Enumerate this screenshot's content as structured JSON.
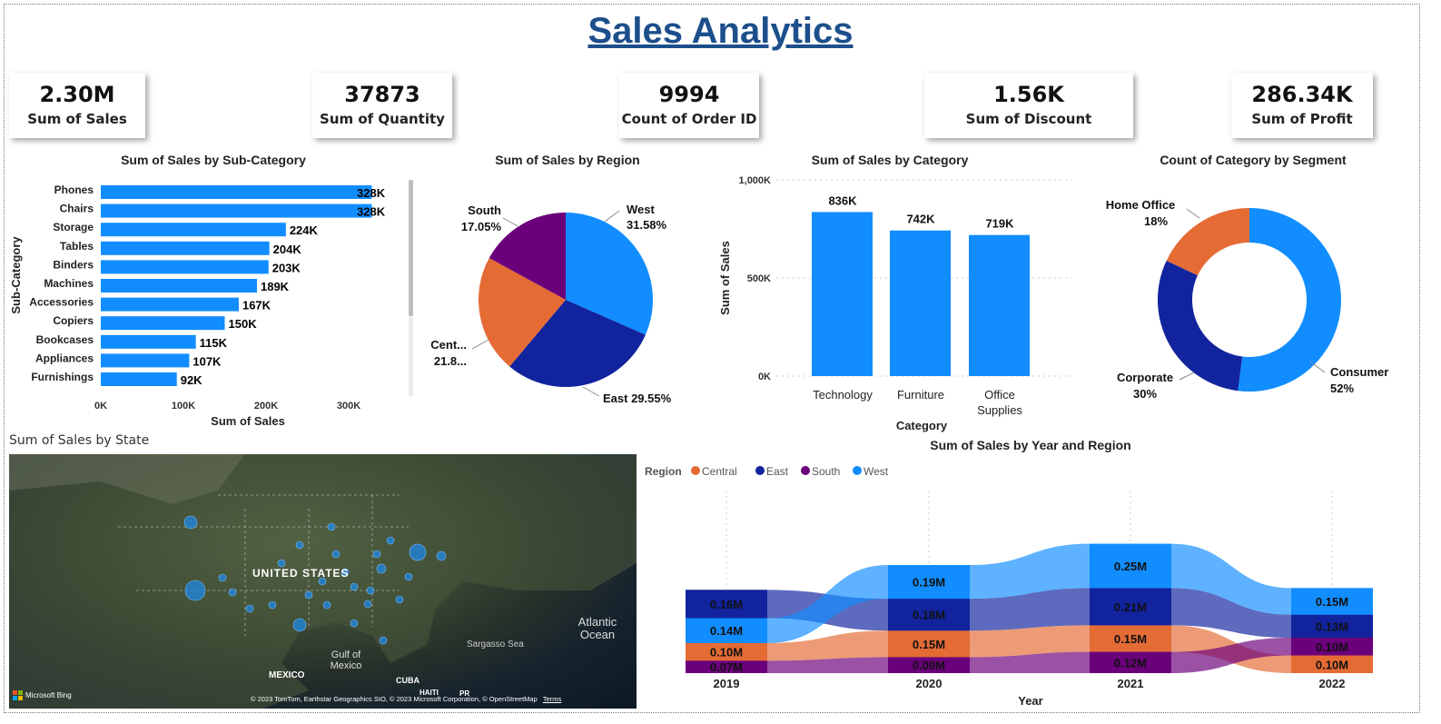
{
  "title": "Sales Analytics",
  "kpis": [
    {
      "value": "2.30M",
      "label": "Sum of Sales"
    },
    {
      "value": "37873",
      "label": "Sum of Quantity"
    },
    {
      "value": "9994",
      "label": "Count of Order ID"
    },
    {
      "value": "1.56K",
      "label": "Sum of Discount"
    },
    {
      "value": "286.34K",
      "label": "Sum of Profit"
    }
  ],
  "map": {
    "title": "Sum of Sales by State",
    "labels": {
      "us": "UNITED STATES",
      "mexico": "MEXICO",
      "gulf": "Gulf of Mexico",
      "cuba": "CUBA",
      "atlantic": "Atlantic Ocean",
      "sargasso": "Sargasso Sea",
      "haiti": "HAITI",
      "pr": "PR"
    },
    "bing": "Microsoft Bing",
    "attribution": "© 2023 TomTom, Earthstar Geographics SIO, © 2023 Microsoft Corporation, © OpenStreetMap",
    "terms": "Terms",
    "bubble_color": "#1e88e5"
  },
  "colors": {
    "central": "#e56b35",
    "east": "#12239e",
    "south": "#6b007b",
    "west": "#118dff"
  },
  "chart_data": [
    {
      "type": "bar",
      "orientation": "horizontal",
      "title": "Sum of Sales by Sub-Category",
      "xlabel": "Sum of Sales",
      "ylabel": "Sub-Category",
      "categories": [
        "Phones",
        "Chairs",
        "Storage",
        "Tables",
        "Binders",
        "Machines",
        "Accessories",
        "Copiers",
        "Bookcases",
        "Appliances",
        "Furnishings"
      ],
      "values": [
        328000,
        328000,
        224000,
        204000,
        203000,
        189000,
        167000,
        150000,
        115000,
        107000,
        92000
      ],
      "data_labels": [
        "328K",
        "328K",
        "224K",
        "204K",
        "203K",
        "189K",
        "167K",
        "150K",
        "115K",
        "107K",
        "92K"
      ],
      "xticks": [
        "0K",
        "100K",
        "200K",
        "300K"
      ],
      "xlim": [
        0,
        350000
      ]
    },
    {
      "type": "pie",
      "title": "Sum of Sales by Region",
      "slices": [
        {
          "label": "West",
          "percent_label": "31.58%",
          "value": 31.58
        },
        {
          "label": "East",
          "percent_label": "29.55%",
          "value": 29.55
        },
        {
          "label": "Cent...",
          "percent_label": "21.8...",
          "value": 21.82
        },
        {
          "label": "South",
          "percent_label": "17.05%",
          "value": 17.05
        }
      ]
    },
    {
      "type": "bar",
      "title": "Sum of Sales by Category",
      "xlabel": "Category",
      "ylabel": "Sum of Sales",
      "categories": [
        "Technology",
        "Furniture",
        "Office Supplies"
      ],
      "values": [
        836000,
        742000,
        719000
      ],
      "data_labels": [
        "836K",
        "742K",
        "719K"
      ],
      "yticks": [
        "0K",
        "500K",
        "1,000K"
      ],
      "ylim": [
        0,
        1000000
      ]
    },
    {
      "type": "pie",
      "donut": true,
      "title": "Count of Category by Segment",
      "slices": [
        {
          "label": "Consumer",
          "percent_label": "52%",
          "value": 52
        },
        {
          "label": "Corporate",
          "percent_label": "30%",
          "value": 30
        },
        {
          "label": "Home Office",
          "percent_label": "18%",
          "value": 18
        }
      ]
    },
    {
      "type": "area",
      "subtype": "ribbon",
      "title": "Sum of Sales by Year and Region",
      "xlabel": "Year",
      "legend_title": "Region",
      "categories": [
        "2019",
        "2020",
        "2021",
        "2022"
      ],
      "series": [
        {
          "name": "Central",
          "values": [
            0.1,
            0.15,
            0.15,
            0.1
          ],
          "labels": [
            "0.10M",
            "0.15M",
            "0.15M",
            "0.10M"
          ]
        },
        {
          "name": "East",
          "values": [
            0.16,
            0.18,
            0.21,
            0.13
          ],
          "labels": [
            "0.16M",
            "0.18M",
            "0.21M",
            "0.13M"
          ]
        },
        {
          "name": "South",
          "values": [
            0.07,
            0.09,
            0.12,
            0.1
          ],
          "labels": [
            "0.07M",
            "0.09M",
            "0.12M",
            "0.10M"
          ]
        },
        {
          "name": "West",
          "values": [
            0.14,
            0.19,
            0.25,
            0.15
          ],
          "labels": [
            "0.14M",
            "0.19M",
            "0.25M",
            "0.15M"
          ]
        }
      ]
    }
  ]
}
